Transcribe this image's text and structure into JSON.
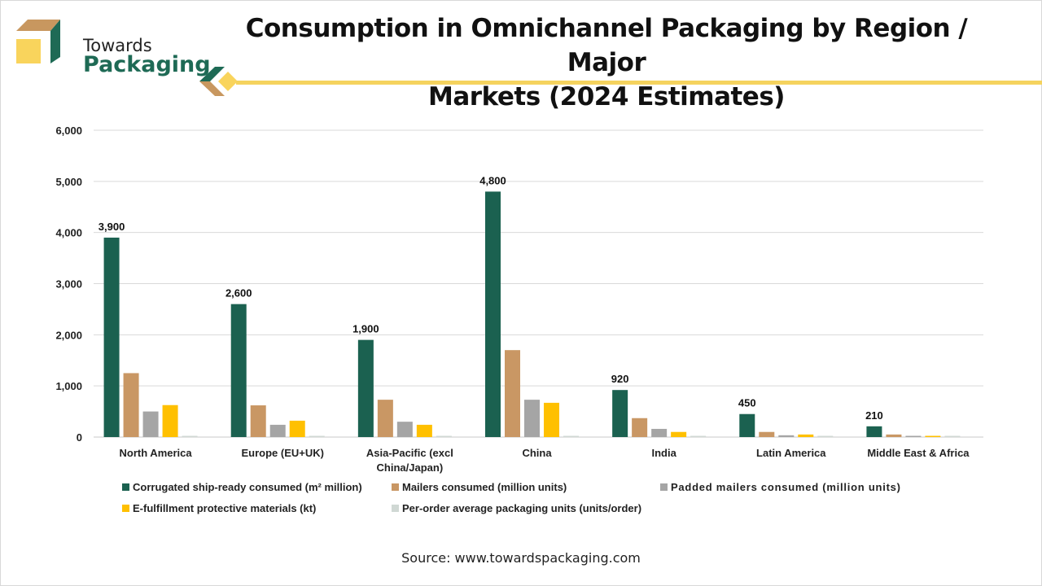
{
  "brand": {
    "line1": "Towards",
    "line2": "Packaging",
    "colors": {
      "green": "#1e6a55",
      "tan": "#c8975f",
      "yellow": "#f9d45c"
    }
  },
  "source": "Source: www.towardspackaging.com",
  "chart_data": {
    "type": "bar",
    "title": "Consumption in Omnichannel Packaging by Region / Major Markets (2024 Estimates)",
    "title_lines": [
      "Consumption in Omnichannel Packaging by Region / Major",
      "Markets (2024 Estimates)"
    ],
    "xlabel": "",
    "ylabel": "",
    "ylim": [
      0,
      6000
    ],
    "yticks": [
      0,
      1000,
      2000,
      3000,
      4000,
      5000,
      6000
    ],
    "ytick_labels": [
      "0",
      "1,000",
      "2,000",
      "3,000",
      "4,000",
      "5,000",
      "6,000"
    ],
    "grid": true,
    "legend_position": "bottom",
    "categories": [
      "North America",
      "Europe (EU+UK)",
      "Asia-Pacific (excl China/Japan)",
      "China",
      "India",
      "Latin America",
      "Middle East & Africa"
    ],
    "category_label_lines": [
      [
        "North America"
      ],
      [
        "Europe (EU+UK)"
      ],
      [
        "Asia-Pacific (excl",
        "China/Japan)"
      ],
      [
        "China"
      ],
      [
        "India"
      ],
      [
        "Latin America"
      ],
      [
        "Middle East & Africa"
      ]
    ],
    "series": [
      {
        "name": "Corrugated ship-ready consumed (m² million)",
        "color": "#1b6150",
        "values": [
          3900,
          2600,
          1900,
          4800,
          920,
          450,
          210
        ],
        "data_labels": [
          "3,900",
          "2,600",
          "1,900",
          "4,800",
          "920",
          "450",
          "210"
        ]
      },
      {
        "name": "Mailers consumed (million units)",
        "color": "#c99764",
        "values": [
          1250,
          620,
          730,
          1700,
          370,
          100,
          50
        ]
      },
      {
        "name": "Padded mailers consumed (million units)",
        "color": "#a5a5a5",
        "values": [
          500,
          240,
          300,
          730,
          160,
          35,
          15
        ]
      },
      {
        "name": "E-fulfillment protective materials (kt)",
        "color": "#ffc000",
        "values": [
          625,
          320,
          240,
          670,
          100,
          50,
          20
        ]
      },
      {
        "name": "Per-order average packaging units (units/order)",
        "color": "#d0d8d4",
        "values": [
          3,
          3,
          3,
          3,
          3,
          3,
          3
        ]
      }
    ]
  }
}
